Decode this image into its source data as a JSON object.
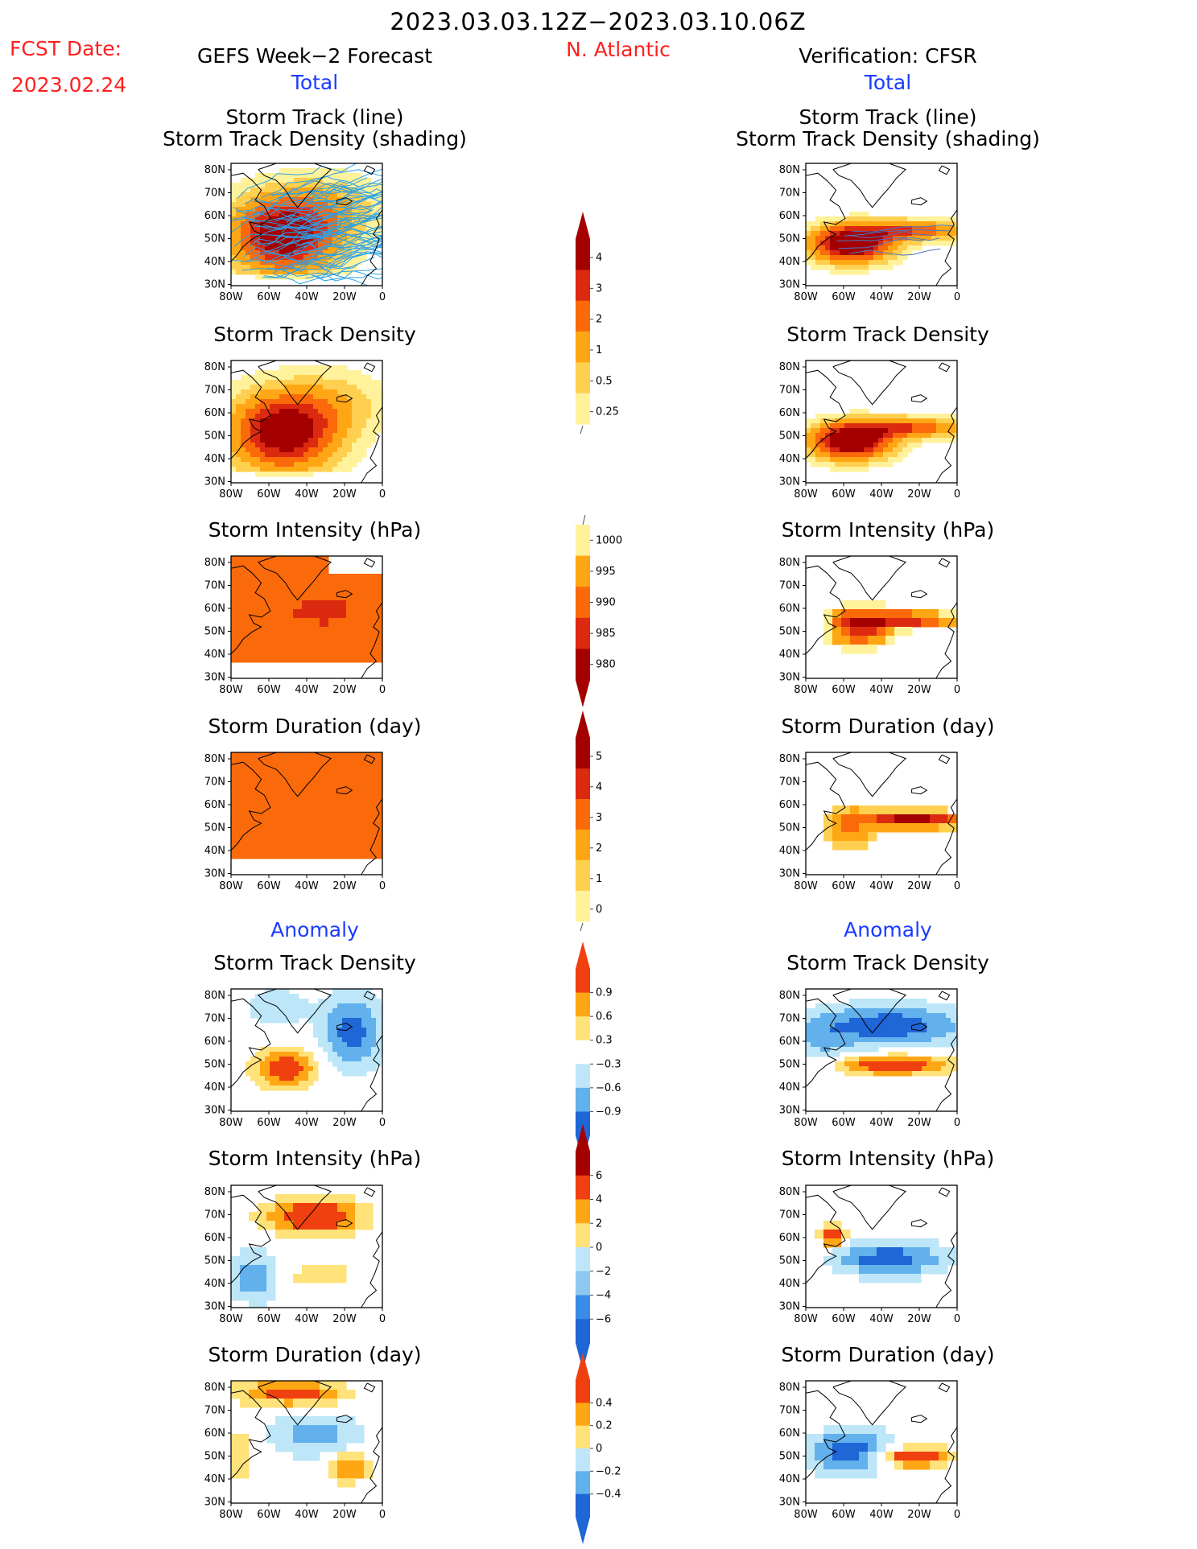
{
  "header": {
    "period": "2023.03.03.12Z−2023.03.10.06Z",
    "fcst_label": "FCST Date:",
    "fcst_date": "2023.02.24",
    "left_title": "GEFS Week−2 Forecast",
    "region": "N. Atlantic",
    "right_title": "Verification: CFSR",
    "total_left": "Total",
    "total_right": "Total",
    "anomaly_left": "Anomaly",
    "anomaly_right": "Anomaly"
  },
  "panel_titles": {
    "track_line": "Storm Track (line)",
    "track_shading": "Storm Track Density (shading)",
    "density": "Storm Track Density",
    "intensity": "Storm Intensity (hPa)",
    "duration": "Storm Duration (day)"
  },
  "axes": {
    "lat_labels": [
      "80N",
      "70N",
      "60N",
      "50N",
      "40N",
      "30N"
    ],
    "lon_labels": [
      "80W",
      "60W",
      "40W",
      "20W",
      "0"
    ]
  },
  "colorbars": {
    "density_total": {
      "labels": [
        "4",
        "3",
        "2",
        "1",
        "0.5",
        "0.25"
      ],
      "colors": [
        "#a50000",
        "#dc2a10",
        "#fa6a0a",
        "#ffa614",
        "#ffcf50",
        "#fff29a"
      ]
    },
    "intensity_total": {
      "labels": [
        "1000",
        "995",
        "990",
        "985",
        "980"
      ],
      "colors": [
        "#fff29a",
        "#ffa614",
        "#fa6a0a",
        "#dc2a10",
        "#a50000"
      ]
    },
    "duration_total": {
      "labels": [
        "5",
        "4",
        "3",
        "2",
        "1",
        "0"
      ],
      "colors": [
        "#a50000",
        "#dc2a10",
        "#fa6a0a",
        "#ffa614",
        "#ffcf50",
        "#fff29a"
      ]
    },
    "density_anom": {
      "labels": [
        "0.9",
        "0.6",
        "0.3",
        "−0.3",
        "−0.6",
        "−0.9"
      ],
      "colors": [
        "#f04010",
        "#ffa614",
        "#ffe27a",
        "#ffffff",
        "#bde6f8",
        "#62b0ec",
        "#1f66d6"
      ]
    },
    "intensity_anom": {
      "labels": [
        "6",
        "4",
        "2",
        "0",
        "−2",
        "−4",
        "−6"
      ],
      "colors": [
        "#a50000",
        "#f04010",
        "#ffa614",
        "#ffe27a",
        "#bde6f8",
        "#8cc8f0",
        "#3a8ce6",
        "#1f66d6"
      ]
    },
    "duration_anom": {
      "labels": [
        "0.4",
        "0.2",
        "0",
        "−0.2",
        "−0.4"
      ],
      "colors": [
        "#f04010",
        "#ffa614",
        "#ffe27a",
        "#bde6f8",
        "#62b0ec",
        "#1f66d6"
      ]
    }
  }
}
